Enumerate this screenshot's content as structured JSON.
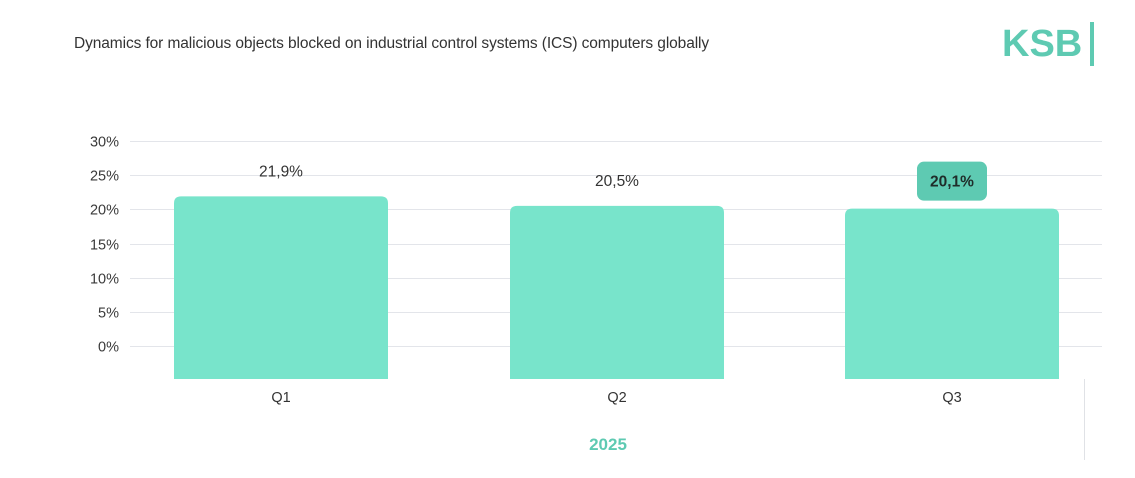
{
  "header": {
    "title": "Dynamics for malicious objects blocked on industrial control systems (ICS) computers globally",
    "logo_text": "KSB"
  },
  "colors": {
    "bar": "#78e4cb",
    "highlight_badge": "#5ecab2",
    "accent": "#5ecab2",
    "grid": "#e3e5ea"
  },
  "chart_data": {
    "type": "bar",
    "title": "Dynamics for malicious objects blocked on industrial control systems (ICS) computers globally",
    "xlabel": "2025",
    "ylabel": "",
    "categories": [
      "Q1",
      "Q2",
      "Q3"
    ],
    "values": [
      21.9,
      20.5,
      20.1
    ],
    "value_labels": [
      "21,9%",
      "20,5%",
      "20,1%"
    ],
    "highlighted_index": 2,
    "ylim": [
      0,
      30
    ],
    "yticks": [
      0,
      5,
      10,
      15,
      20,
      25,
      30
    ],
    "ytick_labels": [
      "0%",
      "5%",
      "10%",
      "15%",
      "20%",
      "25%",
      "30%"
    ],
    "grid": true,
    "legend": "none"
  }
}
